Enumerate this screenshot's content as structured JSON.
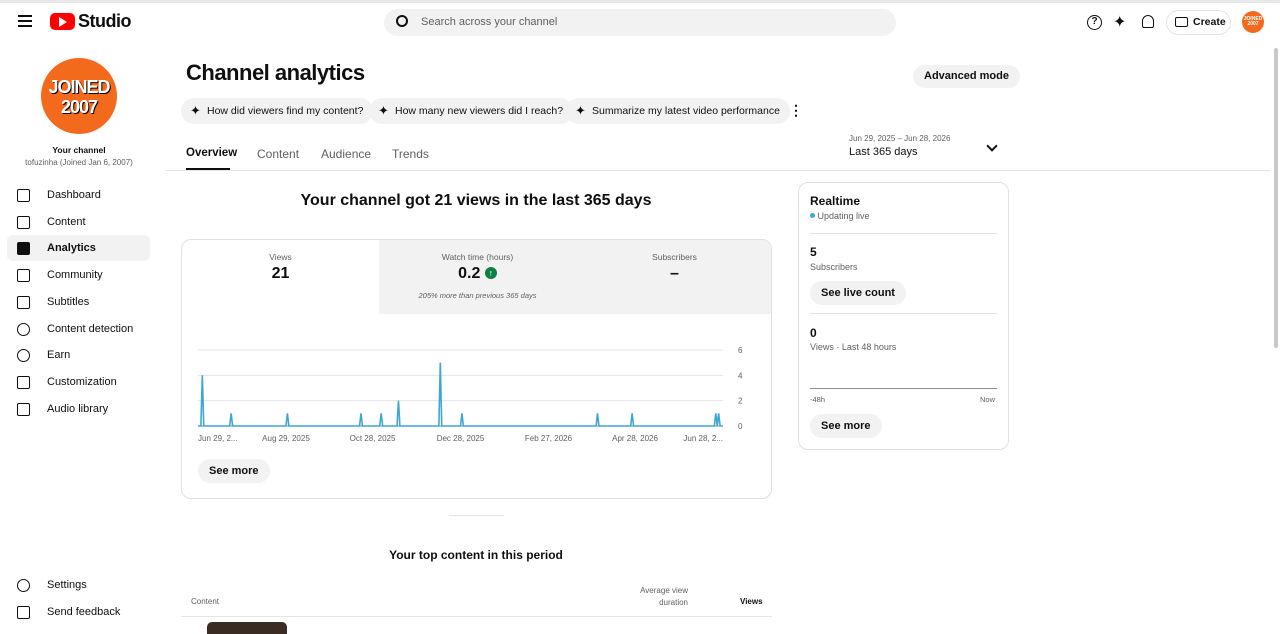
{
  "header": {
    "logo": "Studio",
    "search_placeholder": "Search across your channel",
    "create": "Create"
  },
  "avatar": {
    "line1": "JOINED",
    "line2": "2007"
  },
  "sidebar": {
    "channel_label": "Your channel",
    "channel_name": "tofuzinha (Joined Jan 6, 2007)",
    "nav": [
      "Dashboard",
      "Content",
      "Analytics",
      "Community",
      "Subtitles",
      "Content detection",
      "Earn",
      "Customization",
      "Audio library"
    ],
    "footer": [
      "Settings",
      "Send feedback"
    ]
  },
  "page": {
    "title": "Channel analytics",
    "advanced": "Advanced mode",
    "prompts": [
      "How did viewers find my content?",
      "How many new viewers did I reach?",
      "Summarize my latest video performance"
    ],
    "tabs": [
      "Overview",
      "Content",
      "Audience",
      "Trends"
    ],
    "date_range": "Jun 29, 2025 – Jun 28, 2026",
    "period": "Last 365 days",
    "headline": "Your channel got 21 views in the last 365 days",
    "see_more": "See more"
  },
  "metrics": [
    {
      "label": "Views",
      "value": 21
    },
    {
      "label": "Watch time (hours)",
      "value": 0.2,
      "note": "205% more than previous 365 days"
    },
    {
      "label": "Subscribers",
      "value": "–"
    }
  ],
  "chart_data": {
    "type": "line",
    "color": "#3ea6d6",
    "x": [
      "2025-06-29",
      "2025-07-01",
      "2025-07-02",
      "2025-07-03",
      "2025-07-21",
      "2025-07-22",
      "2025-07-23",
      "2025-08-29",
      "2025-08-30",
      "2025-08-31",
      "2025-10-19",
      "2025-10-20",
      "2025-10-21",
      "2025-11-02",
      "2025-11-03",
      "2025-11-04",
      "2025-11-14",
      "2025-11-15",
      "2025-11-16",
      "2025-12-13",
      "2025-12-14",
      "2025-12-15",
      "2025-12-28",
      "2025-12-29",
      "2025-12-30",
      "2026-04-01",
      "2026-04-02",
      "2026-04-03",
      "2026-04-25",
      "2026-04-26",
      "2026-04-27",
      "2026-06-22",
      "2026-06-23",
      "2026-06-24",
      "2026-06-25",
      "2026-06-26",
      "2026-06-28"
    ],
    "values": [
      0,
      0,
      4,
      0,
      0,
      1,
      0,
      0,
      1,
      0,
      0,
      1,
      0,
      0,
      1,
      0,
      0,
      2,
      0,
      0,
      5,
      0,
      0,
      1,
      0,
      0,
      1,
      0,
      0,
      1,
      0,
      0,
      1,
      0,
      1,
      0,
      0
    ],
    "xlim": [
      "2025-06-29",
      "2026-06-28"
    ],
    "xticks": [
      {
        "value": "2025-06-29",
        "label": "Jun 29, 2..."
      },
      {
        "value": "2025-08-29",
        "label": "Aug 29, 2025"
      },
      {
        "value": "2025-10-28",
        "label": "Oct 28, 2025"
      },
      {
        "value": "2025-12-28",
        "label": "Dec 28, 2025"
      },
      {
        "value": "2026-02-27",
        "label": "Feb 27, 2026"
      },
      {
        "value": "2026-04-28",
        "label": "Apr 28, 2026"
      },
      {
        "value": "2026-06-28",
        "label": "Jun 28, 2..."
      }
    ],
    "ylim": [
      0,
      6
    ],
    "yticks": [
      0,
      2,
      4,
      6
    ],
    "grid": true
  },
  "realtime": {
    "title": "Realtime",
    "status": "Updating live",
    "subscribers": 5,
    "subscribers_label": "Subscribers",
    "live_count": "See live count",
    "views": 0,
    "views_label": "Views · Last 48 hours",
    "axis_start": "-48h",
    "axis_end": "Now",
    "see_more": "See more"
  },
  "top_content": {
    "title": "Your top content in this period",
    "columns": [
      "Content",
      "Average view duration",
      "Views"
    ]
  }
}
